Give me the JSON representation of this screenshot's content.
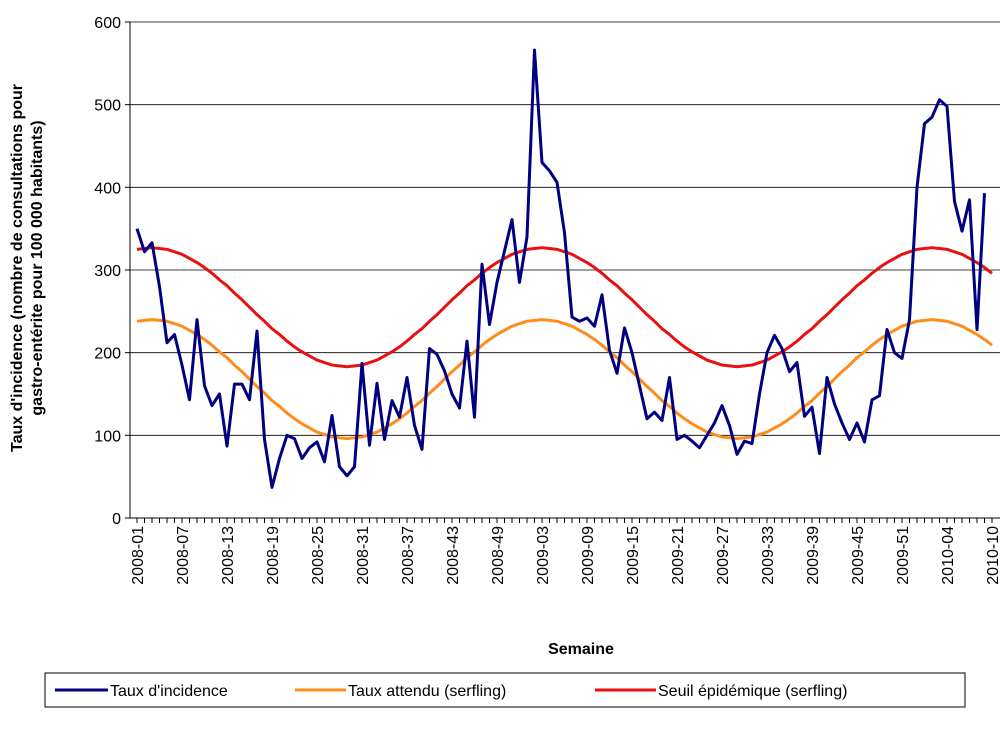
{
  "chart_data": {
    "type": "line",
    "x_axis_label": "Semaine",
    "y_axis_label": [
      "Taux d'incidence (nombre de consultations pour",
      "gastro-entérite pour 100 000 habitants)"
    ],
    "categories": [
      "2008-01",
      null,
      null,
      null,
      null,
      null,
      "2008-07",
      null,
      null,
      null,
      null,
      null,
      "2008-13",
      null,
      null,
      null,
      null,
      null,
      "2008-19",
      null,
      null,
      null,
      null,
      null,
      "2008-25",
      null,
      null,
      null,
      null,
      null,
      "2008-31",
      null,
      null,
      null,
      null,
      null,
      "2008-37",
      null,
      null,
      null,
      null,
      null,
      "2008-43",
      null,
      null,
      null,
      null,
      null,
      "2008-49",
      null,
      null,
      null,
      null,
      null,
      "2009-03",
      null,
      null,
      null,
      null,
      null,
      "2009-09",
      null,
      null,
      null,
      null,
      null,
      "2009-15",
      null,
      null,
      null,
      null,
      null,
      "2009-21",
      null,
      null,
      null,
      null,
      null,
      "2009-27",
      null,
      null,
      null,
      null,
      null,
      "2009-33",
      null,
      null,
      null,
      null,
      null,
      "2009-39",
      null,
      null,
      null,
      null,
      null,
      "2009-45",
      null,
      null,
      null,
      null,
      null,
      "2009-51",
      null,
      null,
      null,
      null,
      null,
      "2010-04",
      null,
      null,
      null,
      null,
      null,
      "2010-10"
    ],
    "series": [
      {
        "name": "Taux d'incidence",
        "color": "#000080",
        "values": [
          350,
          322,
          333,
          280,
          212,
          222,
          185,
          143,
          240,
          160,
          136,
          150,
          87,
          162,
          162,
          143,
          226,
          95,
          37,
          72,
          100,
          96,
          72,
          85,
          92,
          68,
          124,
          62,
          51,
          62,
          187,
          88,
          163,
          95,
          142,
          122,
          170,
          112,
          83,
          205,
          198,
          178,
          150,
          133,
          214,
          122,
          307,
          234,
          285,
          323,
          361,
          285,
          340,
          566,
          430,
          420,
          406,
          345,
          243,
          238,
          242,
          232,
          270,
          203,
          175,
          230,
          200,
          160,
          120,
          128,
          118,
          170,
          95,
          100,
          93,
          85,
          100,
          115,
          136,
          112,
          77,
          93,
          90,
          150,
          200,
          221,
          205,
          177,
          188,
          123,
          134,
          78,
          170,
          138,
          115,
          95,
          115,
          92,
          143,
          148,
          228,
          200,
          193,
          240,
          400,
          477,
          485,
          506,
          498,
          383,
          347,
          385,
          228,
          393,
          null
        ]
      },
      {
        "name": "Taux attendu (serfling)",
        "color": "#ff8c1a",
        "values": [
          238,
          239,
          240,
          239,
          238,
          235,
          232,
          227,
          222,
          216,
          209,
          201,
          194,
          185,
          177,
          168,
          159,
          151,
          142,
          135,
          127,
          120,
          114,
          109,
          104,
          101,
          98,
          97,
          96,
          97,
          98,
          101,
          104,
          109,
          114,
          120,
          127,
          135,
          142,
          151,
          159,
          168,
          177,
          185,
          194,
          201,
          209,
          216,
          222,
          227,
          232,
          235,
          238,
          239,
          240,
          239,
          238,
          235,
          232,
          227,
          222,
          216,
          209,
          201,
          194,
          185,
          177,
          168,
          159,
          151,
          142,
          135,
          127,
          120,
          114,
          109,
          104,
          101,
          98,
          97,
          96,
          97,
          98,
          101,
          104,
          109,
          114,
          120,
          127,
          135,
          142,
          151,
          159,
          168,
          177,
          185,
          194,
          201,
          209,
          216,
          222,
          227,
          232,
          235,
          238,
          239,
          240,
          239,
          238,
          235,
          232,
          227,
          222,
          216,
          209
        ]
      },
      {
        "name": "Seuil épidémique (serfling)",
        "color": "#e81010",
        "values": [
          325,
          326,
          327,
          326,
          325,
          322,
          319,
          314,
          309,
          303,
          296,
          288,
          281,
          272,
          264,
          255,
          246,
          238,
          229,
          222,
          214,
          207,
          201,
          196,
          191,
          188,
          185,
          184,
          183,
          184,
          185,
          188,
          191,
          196,
          201,
          207,
          214,
          222,
          229,
          238,
          246,
          255,
          264,
          272,
          281,
          288,
          296,
          303,
          309,
          314,
          319,
          322,
          325,
          326,
          327,
          326,
          325,
          322,
          319,
          314,
          309,
          303,
          296,
          288,
          281,
          272,
          264,
          255,
          246,
          238,
          229,
          222,
          214,
          207,
          201,
          196,
          191,
          188,
          185,
          184,
          183,
          184,
          185,
          188,
          191,
          196,
          201,
          207,
          214,
          222,
          229,
          238,
          246,
          255,
          264,
          272,
          281,
          288,
          296,
          303,
          309,
          314,
          319,
          322,
          325,
          326,
          327,
          326,
          325,
          322,
          319,
          314,
          309,
          303,
          296
        ]
      }
    ],
    "ylim": [
      0,
      600
    ],
    "yticks": [
      0,
      100,
      200,
      300,
      400,
      500,
      600
    ],
    "grid": true
  }
}
